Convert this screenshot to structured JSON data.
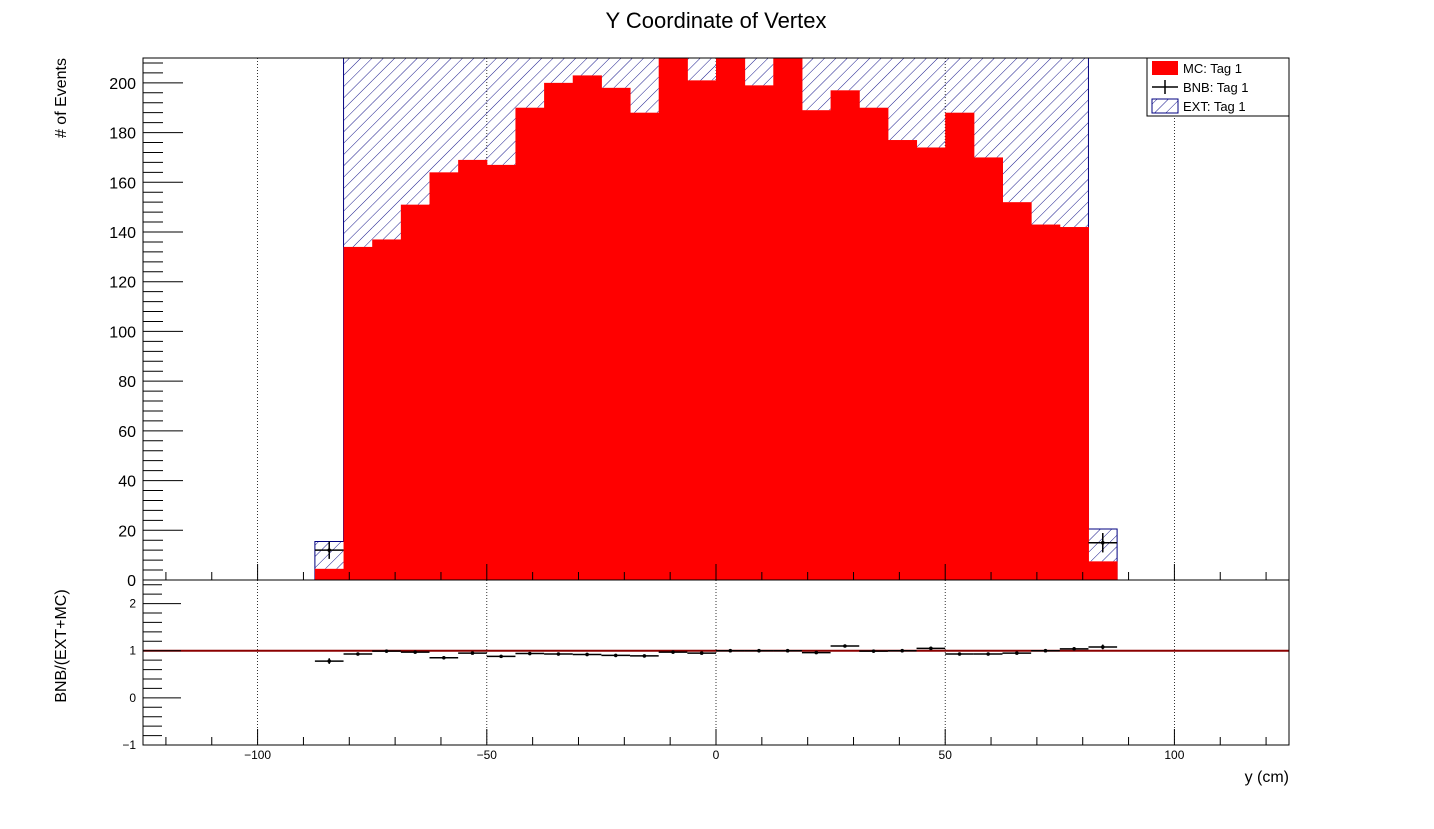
{
  "chart_data": [
    {
      "panel": "main",
      "type": "bar",
      "title": "Y Coordinate of Vertex",
      "ylabel": "# of Events",
      "xlim": [
        -125,
        125
      ],
      "ylim": [
        0,
        210
      ],
      "yticks": [
        0,
        20,
        40,
        60,
        80,
        100,
        120,
        140,
        160,
        180,
        200
      ],
      "grid_x": true,
      "bin_edges": [
        -87.5,
        -81.25,
        -75,
        -68.75,
        -62.5,
        -56.25,
        -50,
        -43.75,
        -37.5,
        -31.25,
        -25,
        -18.75,
        -12.5,
        -6.25,
        0,
        6.25,
        12.5,
        18.75,
        25,
        31.25,
        37.5,
        43.75,
        50,
        56.25,
        62.5,
        68.75,
        75,
        81.25,
        87.5
      ],
      "series": [
        {
          "name": "MC: Tag 1",
          "style": "filled",
          "color": "#ff0000",
          "values": [
            4.5,
            134,
            137,
            151,
            164,
            169,
            167,
            190,
            200,
            203,
            198,
            188,
            212,
            201,
            212,
            199,
            212,
            189,
            197,
            190,
            177,
            174,
            188,
            170,
            152,
            143,
            142,
            7.5
          ]
        },
        {
          "name": "EXT: Tag 1",
          "style": "hatched",
          "color": "#000080",
          "values": [
            11,
            76,
            73,
            59,
            46,
            41,
            43,
            20,
            10,
            7,
            12,
            22,
            0,
            9,
            0,
            11,
            0,
            21,
            13,
            20,
            33,
            36,
            22,
            40,
            58,
            67,
            68,
            13
          ]
        },
        {
          "name": "BNB: Tag 1",
          "style": "points",
          "color": "#000000",
          "values": [
            12,
            null,
            null,
            null,
            null,
            null,
            null,
            null,
            null,
            null,
            null,
            null,
            null,
            null,
            null,
            null,
            null,
            null,
            null,
            null,
            null,
            null,
            null,
            null,
            null,
            null,
            null,
            15
          ],
          "errors": [
            3.5,
            null,
            null,
            null,
            null,
            null,
            null,
            null,
            null,
            null,
            null,
            null,
            null,
            null,
            null,
            null,
            null,
            null,
            null,
            null,
            null,
            null,
            null,
            null,
            null,
            null,
            null,
            3.9
          ]
        }
      ],
      "legend": {
        "position": "top-right",
        "entries": [
          "MC: Tag 1",
          "BNB: Tag 1",
          "EXT: Tag 1"
        ]
      }
    },
    {
      "panel": "ratio",
      "type": "scatter",
      "xlabel": "y (cm)",
      "ylabel": "BNB/(EXT+MC)",
      "xlim": [
        -125,
        125
      ],
      "ylim": [
        -1,
        2.5
      ],
      "xticks": [
        -100,
        -50,
        0,
        50,
        100
      ],
      "yticks": [
        -1,
        0,
        1,
        2
      ],
      "reference_line": {
        "y": 1,
        "color": "#8b0000"
      },
      "grid_x": true,
      "x": [
        -84.375,
        -78.125,
        -71.875,
        -65.625,
        -59.375,
        -53.125,
        -46.875,
        -40.625,
        -34.375,
        -28.125,
        -21.875,
        -15.625,
        -9.375,
        -3.125,
        3.125,
        9.375,
        15.625,
        21.875,
        28.125,
        34.375,
        40.625,
        46.875,
        53.125,
        59.375,
        65.625,
        71.875,
        78.125,
        84.375
      ],
      "y": [
        0.78,
        0.93,
        0.99,
        0.97,
        0.85,
        0.95,
        0.88,
        0.94,
        0.93,
        0.92,
        0.9,
        0.89,
        0.97,
        0.95,
        1.0,
        1.0,
        1.0,
        0.96,
        1.1,
        0.99,
        1.0,
        1.05,
        0.93,
        0.93,
        0.95,
        1.0,
        1.04,
        1.08
      ],
      "y_err": [
        0.06,
        0.03,
        0.02,
        0.02,
        0.02,
        0.02,
        0.02,
        0.02,
        0.02,
        0.02,
        0.02,
        0.02,
        0.02,
        0.02,
        0.02,
        0.02,
        0.02,
        0.02,
        0.02,
        0.02,
        0.02,
        0.02,
        0.02,
        0.02,
        0.02,
        0.02,
        0.02,
        0.05
      ]
    }
  ]
}
